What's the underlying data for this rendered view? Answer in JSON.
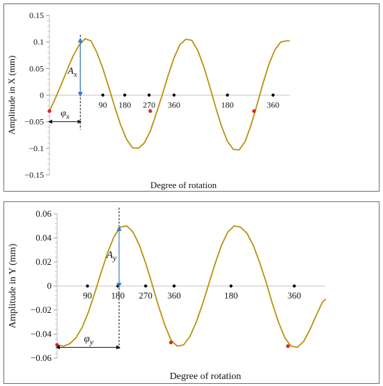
{
  "chart_data": [
    {
      "type": "line",
      "xlabel": "Degree of rotation",
      "ylabel": "Amplitude in X (mm)",
      "ylim": [
        -0.15,
        0.15
      ],
      "yticks": [
        0.15,
        0.1,
        0.05,
        0,
        -0.05,
        -0.1,
        -0.15
      ],
      "ytick_labels": [
        "0.15",
        "0.1",
        "0.05",
        "0",
        "−0.05",
        "−0.1",
        "−0.15"
      ],
      "xlim": [
        0,
        405
      ],
      "axis_markers": [
        {
          "x": 90,
          "label": "90"
        },
        {
          "x": 127,
          "label": "180"
        },
        {
          "x": 168,
          "label": "270"
        },
        {
          "x": 210,
          "label": "360"
        },
        {
          "x": 300,
          "label": "180"
        },
        {
          "x": 377,
          "label": "360"
        }
      ],
      "series": [
        {
          "color": "#b8900a",
          "x": [
            0,
            10,
            20,
            30,
            40,
            50,
            60,
            70,
            80,
            90,
            100,
            110,
            120,
            130,
            140,
            150,
            160,
            170,
            180,
            190,
            200,
            210,
            220,
            230,
            240,
            250,
            260,
            270,
            280,
            290,
            300,
            310,
            320,
            330,
            340,
            350,
            360,
            370,
            380,
            390,
            400,
            405
          ],
          "y": [
            -0.03,
            -0.006,
            0.02,
            0.048,
            0.074,
            0.094,
            0.106,
            0.102,
            0.08,
            0.05,
            0.015,
            -0.022,
            -0.056,
            -0.083,
            -0.099,
            -0.1,
            -0.09,
            -0.068,
            -0.035,
            0.0,
            0.037,
            0.07,
            0.095,
            0.105,
            0.103,
            0.084,
            0.054,
            0.017,
            -0.022,
            -0.058,
            -0.087,
            -0.102,
            -0.103,
            -0.087,
            -0.056,
            -0.018,
            0.022,
            0.058,
            0.085,
            0.1,
            0.102,
            0.102
          ]
        }
      ],
      "highlight_points": [
        {
          "x": 0,
          "y": -0.03
        },
        {
          "x": 170,
          "y": -0.03
        },
        {
          "x": 345,
          "y": -0.03
        }
      ],
      "annotations": [
        {
          "label": "A",
          "sub": "x"
        },
        {
          "label": "φ",
          "sub": "x"
        }
      ],
      "guide_x": 52,
      "phase_range": [
        0,
        52
      ],
      "phase_y": -0.05,
      "amplitude_peak": 0.106
    },
    {
      "type": "line",
      "xlabel": "Degree of rotation",
      "ylabel": "Amplitude in Y (mm)",
      "ylim": [
        -0.06,
        0.06
      ],
      "yticks": [
        0.06,
        0.04,
        0.02,
        0,
        -0.02,
        -0.04,
        -0.06
      ],
      "ytick_labels": [
        "0.06",
        "0.04",
        "0.02",
        "0",
        "−0.02",
        "−0.04",
        "−0.06"
      ],
      "xlim": [
        0,
        425
      ],
      "axis_markers": [
        {
          "x": 48,
          "label": "90"
        },
        {
          "x": 96,
          "label": "180"
        },
        {
          "x": 140,
          "label": "270"
        },
        {
          "x": 185,
          "label": "360"
        },
        {
          "x": 275,
          "label": "180"
        },
        {
          "x": 375,
          "label": "360"
        }
      ],
      "series": [
        {
          "color": "#b8900a",
          "x": [
            0,
            10,
            20,
            30,
            40,
            50,
            60,
            70,
            80,
            90,
            100,
            110,
            120,
            130,
            140,
            150,
            160,
            170,
            180,
            190,
            200,
            210,
            220,
            230,
            240,
            250,
            260,
            270,
            280,
            290,
            300,
            310,
            320,
            330,
            340,
            350,
            360,
            370,
            380,
            390,
            400,
            410,
            420,
            425
          ],
          "y": [
            -0.049,
            -0.05,
            -0.048,
            -0.043,
            -0.034,
            -0.021,
            -0.005,
            0.012,
            0.028,
            0.041,
            0.049,
            0.05,
            0.045,
            0.034,
            0.019,
            0.002,
            -0.016,
            -0.032,
            -0.045,
            -0.05,
            -0.049,
            -0.042,
            -0.03,
            -0.015,
            0.002,
            0.019,
            0.034,
            0.045,
            0.05,
            0.049,
            0.044,
            0.034,
            0.02,
            0.004,
            -0.014,
            -0.03,
            -0.043,
            -0.05,
            -0.051,
            -0.046,
            -0.036,
            -0.024,
            -0.013,
            -0.011
          ]
        }
      ],
      "highlight_points": [
        {
          "x": 0,
          "y": -0.049
        },
        {
          "x": 180,
          "y": -0.047
        },
        {
          "x": 365,
          "y": -0.05
        }
      ],
      "annotations": [
        {
          "label": "A",
          "sub": "y"
        },
        {
          "label": "φ",
          "sub": "y"
        }
      ],
      "guide_x": 98,
      "phase_range": [
        0,
        98
      ],
      "phase_y": -0.051,
      "amplitude_peak": 0.049
    }
  ]
}
